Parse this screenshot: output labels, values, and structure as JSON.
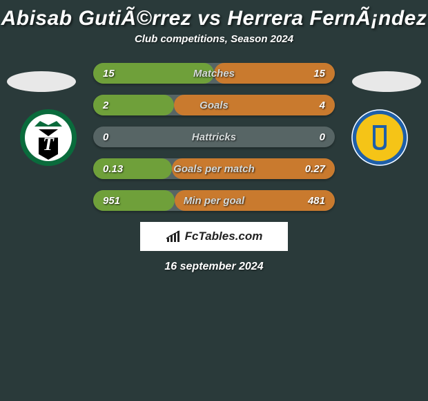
{
  "title": "Abisab GutiÃ©rrez vs Herrera FernÃ¡ndez",
  "subtitle": "Club competitions, Season 2024",
  "date": "16 september 2024",
  "branding_text": "FcTables.com",
  "player_left": {
    "photo_bg": "#e8e8e8",
    "club_colors": {
      "primary": "#0a6b3c",
      "secondary": "#ffffff",
      "accent": "#000000"
    }
  },
  "player_right": {
    "photo_bg": "#e8e8e8",
    "club_colors": {
      "primary": "#f5c417",
      "secondary": "#1f5fa8",
      "accent": "#ffffff"
    }
  },
  "stat_bar_colors": {
    "left": "#6fa03a",
    "right": "#c97a2e",
    "bg": "#576565"
  },
  "stats": [
    {
      "label": "Matches",
      "left_val": "15",
      "right_val": "15",
      "left_pct": 0.5,
      "right_pct": 0.5
    },
    {
      "label": "Goals",
      "left_val": "2",
      "right_val": "4",
      "left_pct": 0.333,
      "right_pct": 0.667
    },
    {
      "label": "Hattricks",
      "left_val": "0",
      "right_val": "0",
      "left_pct": 0.0,
      "right_pct": 0.0
    },
    {
      "label": "Goals per match",
      "left_val": "0.13",
      "right_val": "0.27",
      "left_pct": 0.325,
      "right_pct": 0.675
    },
    {
      "label": "Min per goal",
      "left_val": "951",
      "right_val": "481",
      "left_pct": 0.336,
      "right_pct": 0.664
    }
  ]
}
